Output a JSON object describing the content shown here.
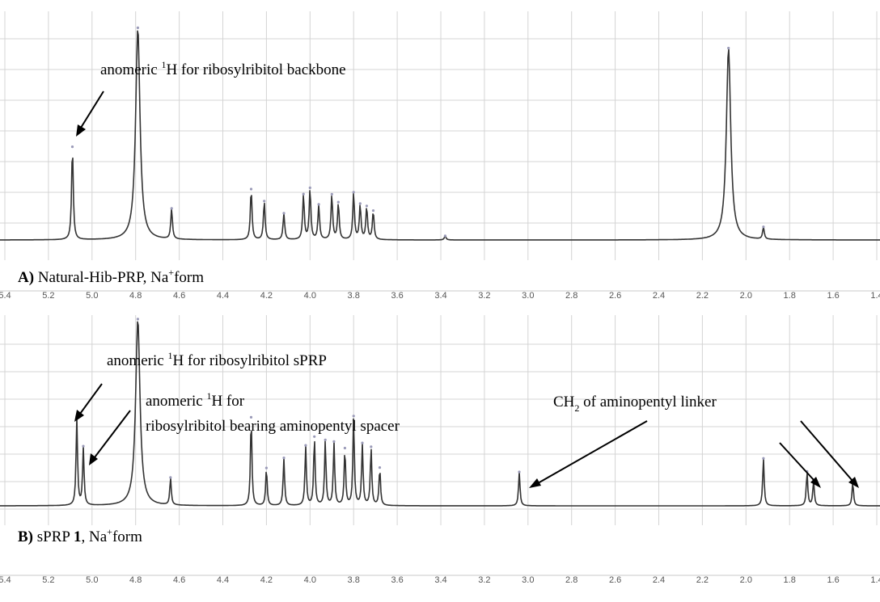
{
  "chart_data": [
    {
      "type": "line",
      "panel_label": "A)",
      "panel_name": " Natural-Hib-PRP, Na",
      "panel_sup": "+",
      "panel_suffix": "form",
      "x_ticks": [
        "5.4",
        "5.2",
        "5.0",
        "4.8",
        "4.6",
        "4.4",
        "4.2",
        "4.0",
        "3.8",
        "3.6",
        "3.4",
        "3.2",
        "3.0",
        "2.8",
        "2.6",
        "2.4",
        "2.2",
        "2.0",
        "1.8",
        "1.6",
        "1.4"
      ],
      "xlim": [
        5.4,
        1.4
      ],
      "x_reversed": true,
      "grid": true,
      "peaks": [
        {
          "ppm": 5.09,
          "intensity": 0.46
        },
        {
          "ppm": 4.79,
          "intensity": 1.05
        },
        {
          "ppm": 4.635,
          "intensity": 0.15
        },
        {
          "ppm": 4.27,
          "intensity": 0.25
        },
        {
          "ppm": 4.21,
          "intensity": 0.19
        },
        {
          "ppm": 4.12,
          "intensity": 0.13
        },
        {
          "ppm": 4.03,
          "intensity": 0.22
        },
        {
          "ppm": 4.0,
          "intensity": 0.25
        },
        {
          "ppm": 3.96,
          "intensity": 0.17
        },
        {
          "ppm": 3.9,
          "intensity": 0.22
        },
        {
          "ppm": 3.87,
          "intensity": 0.18
        },
        {
          "ppm": 3.8,
          "intensity": 0.23
        },
        {
          "ppm": 3.77,
          "intensity": 0.17
        },
        {
          "ppm": 3.74,
          "intensity": 0.16
        },
        {
          "ppm": 3.71,
          "intensity": 0.14
        },
        {
          "ppm": 3.38,
          "intensity": 0.02
        },
        {
          "ppm": 2.08,
          "intensity": 0.95
        },
        {
          "ppm": 1.92,
          "intensity": 0.06
        }
      ],
      "annotations": [
        {
          "text": "anomeric ",
          "sup": "1",
          "text2": "H for ribosylribitol backbone"
        }
      ]
    },
    {
      "type": "line",
      "panel_label": "B)",
      "panel_name": " sPRP ",
      "panel_bold": "1",
      "panel_mid": ", Na",
      "panel_sup": "+",
      "panel_suffix": "form",
      "x_ticks": [
        "5.4",
        "5.2",
        "5.0",
        "4.8",
        "4.6",
        "4.4",
        "4.2",
        "4.0",
        "3.8",
        "3.6",
        "3.4",
        "3.2",
        "3.0",
        "2.8",
        "2.6",
        "2.4",
        "2.2",
        "2.0",
        "1.8",
        "1.6",
        "1.4"
      ],
      "xlim": [
        5.4,
        1.4
      ],
      "x_reversed": true,
      "grid": true,
      "peaks": [
        {
          "ppm": 5.07,
          "intensity": 0.52
        },
        {
          "ppm": 5.04,
          "intensity": 0.34
        },
        {
          "ppm": 4.79,
          "intensity": 1.1
        },
        {
          "ppm": 4.64,
          "intensity": 0.16
        },
        {
          "ppm": 4.27,
          "intensity": 0.52
        },
        {
          "ppm": 4.2,
          "intensity": 0.22
        },
        {
          "ppm": 4.12,
          "intensity": 0.28
        },
        {
          "ppm": 4.02,
          "intensity": 0.35
        },
        {
          "ppm": 3.98,
          "intensity": 0.4
        },
        {
          "ppm": 3.93,
          "intensity": 0.38
        },
        {
          "ppm": 3.89,
          "intensity": 0.37
        },
        {
          "ppm": 3.84,
          "intensity": 0.33
        },
        {
          "ppm": 3.8,
          "intensity": 0.52
        },
        {
          "ppm": 3.76,
          "intensity": 0.36
        },
        {
          "ppm": 3.72,
          "intensity": 0.34
        },
        {
          "ppm": 3.68,
          "intensity": 0.22
        },
        {
          "ppm": 3.04,
          "intensity": 0.2
        },
        {
          "ppm": 1.92,
          "intensity": 0.28
        },
        {
          "ppm": 1.72,
          "intensity": 0.2
        },
        {
          "ppm": 1.69,
          "intensity": 0.15
        },
        {
          "ppm": 1.51,
          "intensity": 0.14
        }
      ],
      "annotations": [
        {
          "text": "anomeric ",
          "sup": "1",
          "text2": "H for ribosylribitol sPRP"
        },
        {
          "text": "anomeric ",
          "sup": "1",
          "text2": "H for"
        },
        {
          "text": "ribosylribitol bearing aminopentyl spacer"
        },
        {
          "text": "CH",
          "sub": "2",
          "text2": " of aminopentyl linker"
        }
      ]
    }
  ],
  "colors": {
    "spectrum": "#333333",
    "grid": "#d4d4d4",
    "text": "#000000",
    "tick_text": "#555555"
  }
}
